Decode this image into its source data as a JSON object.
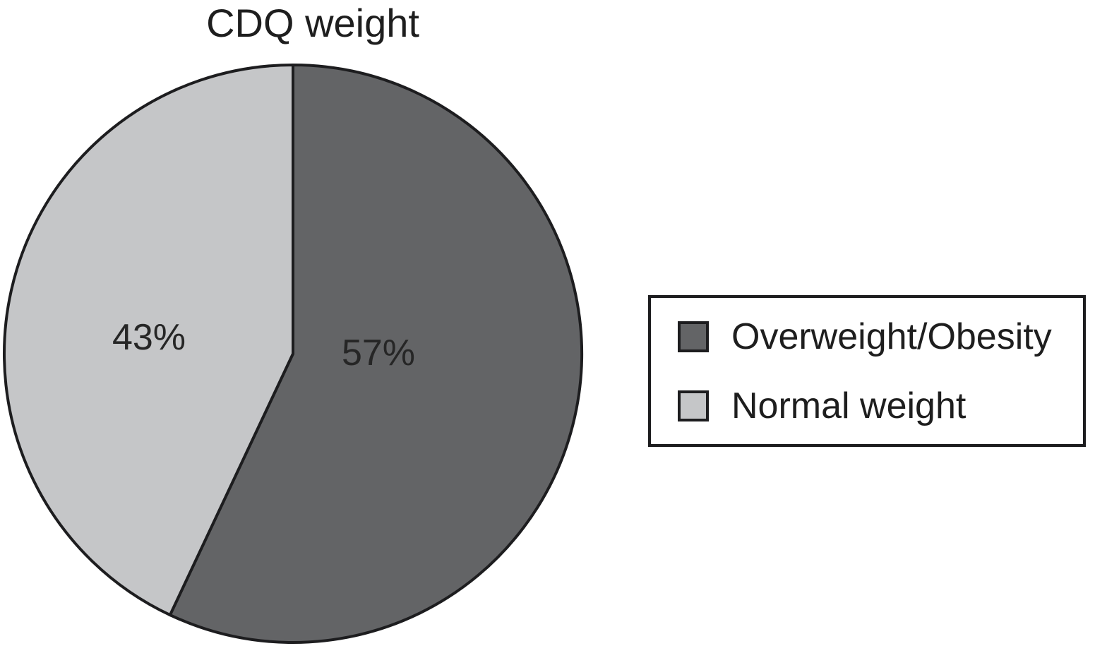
{
  "chart_data": {
    "type": "pie",
    "title": "CDQ weight",
    "start_angle_deg": 0,
    "direction": "clockwise",
    "outline_color": "#1d1d1f",
    "legend_position": "right",
    "slices": [
      {
        "label": "Overweight/Obesity",
        "value": 57,
        "display": "57%",
        "color": "#636466"
      },
      {
        "label": "Normal weight",
        "value": 43,
        "display": "43%",
        "color": "#c5c6c8"
      }
    ]
  },
  "legend": {
    "items": [
      {
        "label": "Overweight/Obesity",
        "color": "#636466"
      },
      {
        "label": "Normal weight",
        "color": "#c5c6c8"
      }
    ]
  }
}
